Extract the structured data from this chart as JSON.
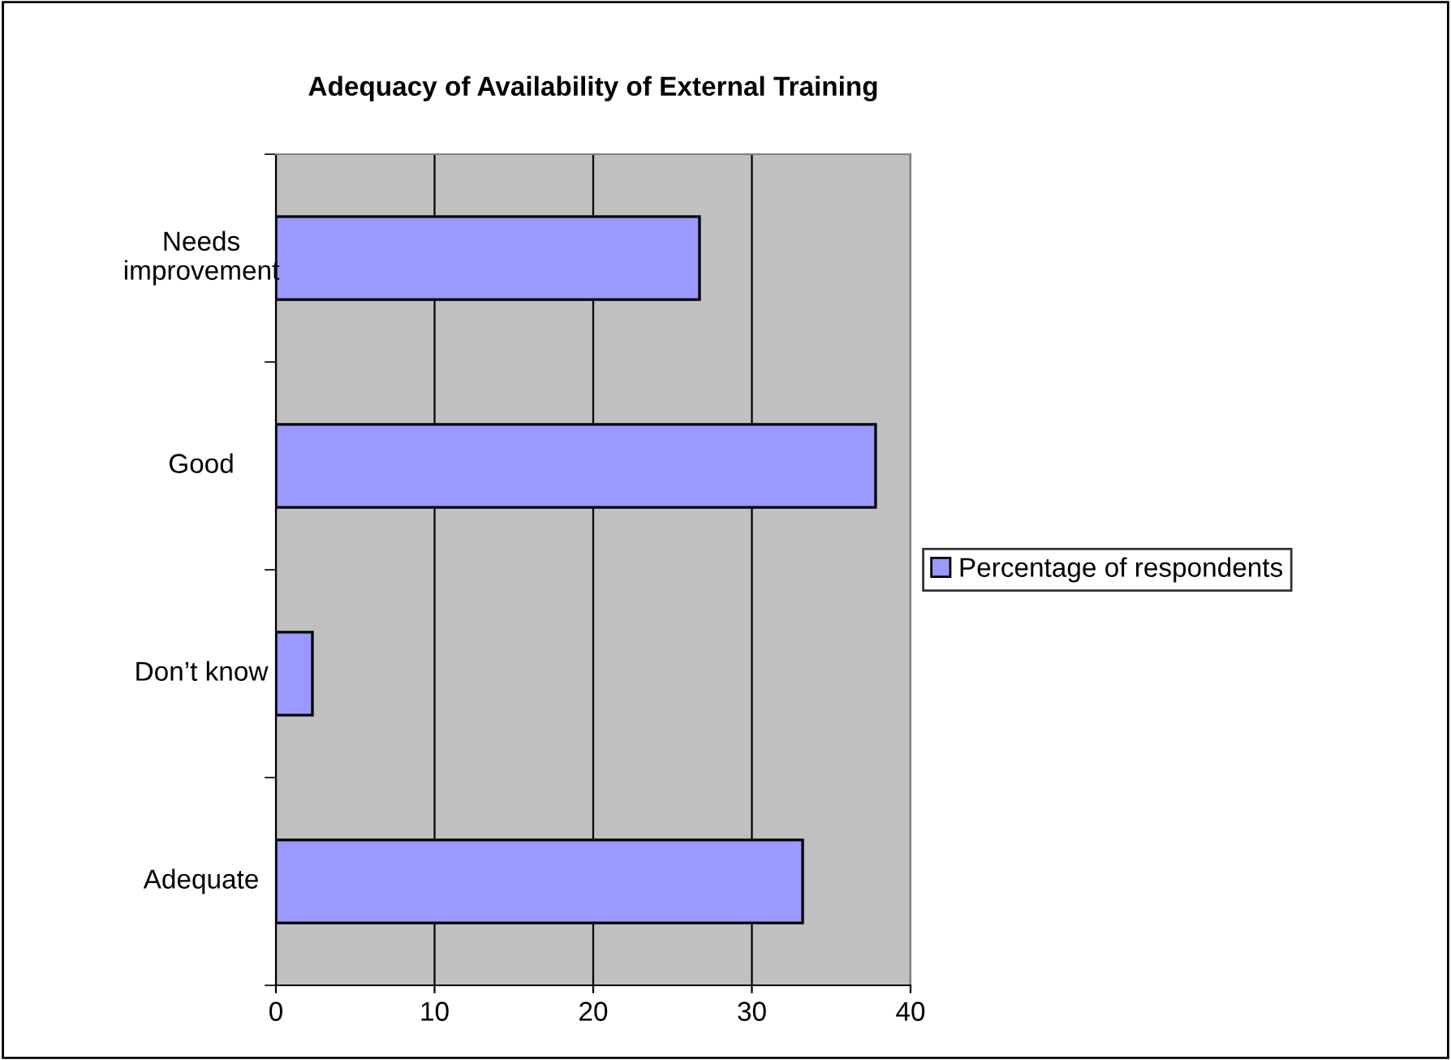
{
  "chart_data": {
    "type": "bar",
    "orientation": "horizontal",
    "title": "Adequacy of Availability of External Training",
    "categories": [
      "Needs\nimprovement",
      "Good",
      "Don’t know",
      "Adequate"
    ],
    "series": [
      {
        "name": "Percentage of respondents",
        "color": "#9999ff",
        "values": [
          26.7,
          37.8,
          2.3,
          33.2
        ]
      }
    ],
    "xlim": [
      0,
      40
    ],
    "xticks": [
      0,
      10,
      20,
      30,
      40
    ],
    "grid": "x",
    "legend": "right"
  }
}
